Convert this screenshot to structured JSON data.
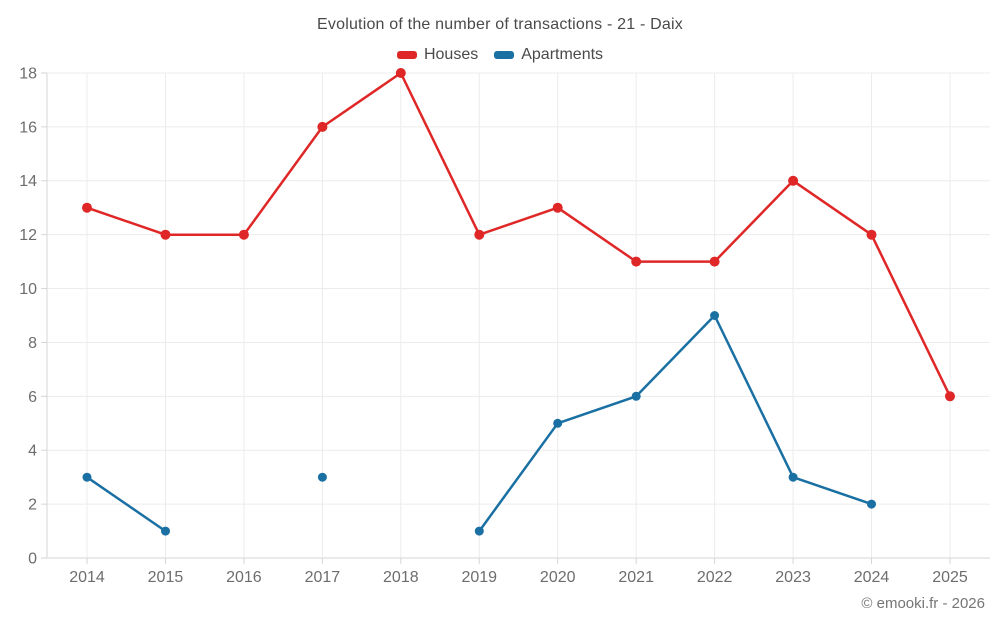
{
  "header": {
    "title": "Evolution of the number of transactions - 21 - Daix"
  },
  "footer": {
    "copyright": "© emooki.fr - 2026"
  },
  "colors": {
    "houses": "#df2727",
    "apartments": "#1a70a3",
    "grid": "#ececec",
    "axis": "#d6d6d6",
    "tick_label": "#6d6d6d",
    "title_text": "#4a4a4a",
    "footer_text": "#757575"
  },
  "chart_data": {
    "type": "line",
    "title": "Evolution of the number of transactions - 21 - Daix",
    "categories": [
      "2014",
      "2015",
      "2016",
      "2017",
      "2018",
      "2019",
      "2020",
      "2021",
      "2022",
      "2023",
      "2024",
      "2025"
    ],
    "series": [
      {
        "name": "Houses",
        "color": "#df2727",
        "values": [
          13,
          12,
          12,
          16,
          18,
          12,
          13,
          11,
          11,
          14,
          12,
          6
        ]
      },
      {
        "name": "Apartments",
        "color": "#1a70a3",
        "values": [
          3,
          1,
          null,
          3,
          null,
          1,
          5,
          6,
          9,
          3,
          2,
          null
        ]
      }
    ],
    "xlabel": "",
    "ylabel": "",
    "ylim": [
      0,
      18
    ],
    "y_ticks": [
      0,
      2,
      4,
      6,
      8,
      10,
      12,
      14,
      16,
      18
    ],
    "grid": true,
    "legend_position": "top"
  }
}
